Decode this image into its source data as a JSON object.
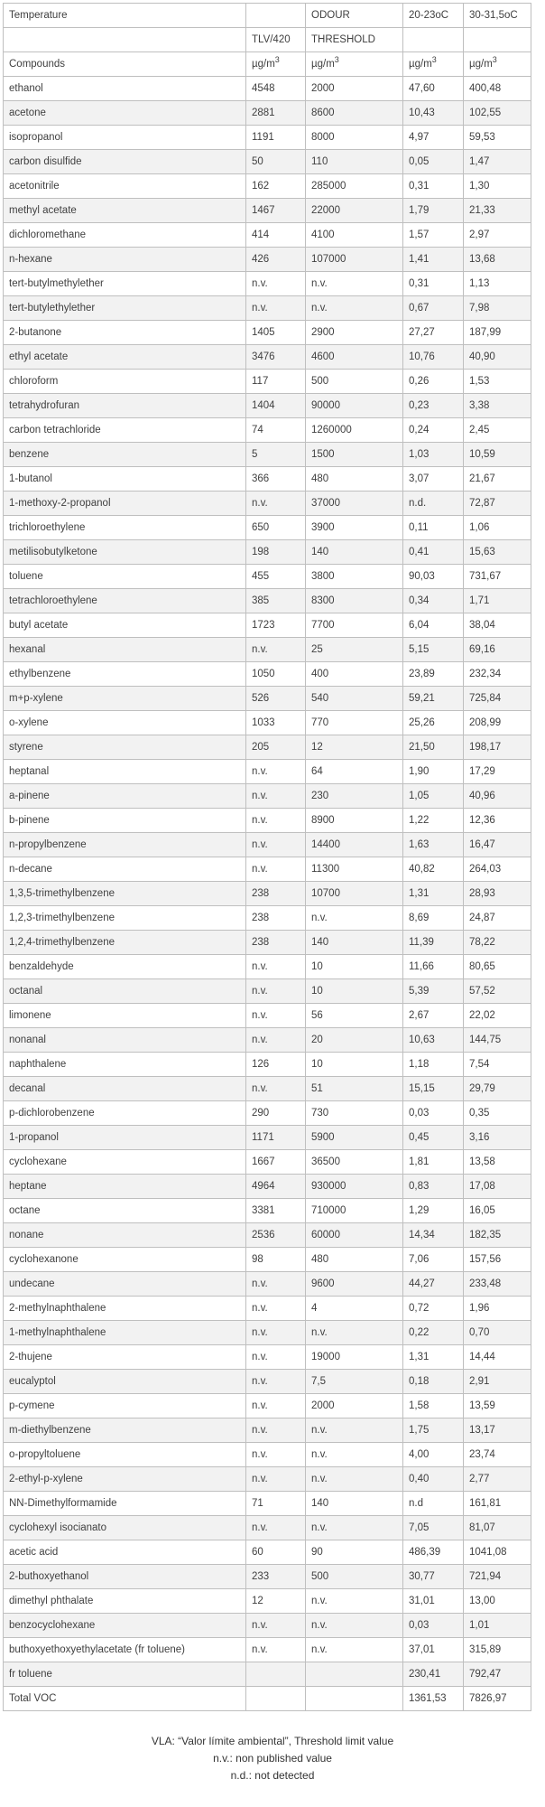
{
  "table": {
    "header": {
      "temperature": "Temperature",
      "odour": "ODOUR",
      "temp_20_23": "20-23oC",
      "temp_30_31": "30-31,5oC",
      "tlv": "TLV/420",
      "threshold": "THRESHOLD",
      "compounds": "Compounds",
      "unit_base": "µg/m",
      "unit_sup": "3"
    },
    "columns": [
      "compound-name",
      "tlv-value",
      "odour-threshold-value",
      "value-20-23c",
      "value-30-31c"
    ],
    "rows": [
      [
        "ethanol",
        "4548",
        "2000",
        "47,60",
        "400,48"
      ],
      [
        "acetone",
        "2881",
        "8600",
        "10,43",
        "102,55"
      ],
      [
        "isopropanol",
        "1191",
        "8000",
        "4,97",
        "59,53"
      ],
      [
        "carbon disulfide",
        "50",
        "110",
        "0,05",
        "1,47"
      ],
      [
        "acetonitrile",
        "162",
        "285000",
        "0,31",
        "1,30"
      ],
      [
        "methyl acetate",
        "1467",
        "22000",
        "1,79",
        "21,33"
      ],
      [
        "dichloromethane",
        "414",
        "4100",
        "1,57",
        "2,97"
      ],
      [
        "n-hexane",
        "426",
        "107000",
        "1,41",
        "13,68"
      ],
      [
        "tert-butylmethylether",
        "n.v.",
        "n.v.",
        "0,31",
        "1,13"
      ],
      [
        "tert-butylethylether",
        "n.v.",
        "n.v.",
        "0,67",
        "7,98"
      ],
      [
        "2-butanone",
        "1405",
        "2900",
        "27,27",
        "187,99"
      ],
      [
        "ethyl acetate",
        "3476",
        "4600",
        "10,76",
        "40,90"
      ],
      [
        "chloroform",
        "117",
        "500",
        "0,26",
        "1,53"
      ],
      [
        "tetrahydrofuran",
        "1404",
        "90000",
        "0,23",
        "3,38"
      ],
      [
        "carbon tetrachloride",
        "74",
        "1260000",
        "0,24",
        "2,45"
      ],
      [
        "benzene",
        "5",
        "1500",
        "1,03",
        "10,59"
      ],
      [
        "1-butanol",
        "366",
        "480",
        "3,07",
        "21,67"
      ],
      [
        "1-methoxy-2-propanol",
        "n.v.",
        "37000",
        "n.d.",
        "72,87"
      ],
      [
        "trichloroethylene",
        "650",
        "3900",
        "0,11",
        "1,06"
      ],
      [
        "metilisobutylketone",
        "198",
        "140",
        "0,41",
        "15,63"
      ],
      [
        "toluene",
        "455",
        "3800",
        "90,03",
        "731,67"
      ],
      [
        "tetrachloroethylene",
        "385",
        "8300",
        "0,34",
        "1,71"
      ],
      [
        "butyl acetate",
        "1723",
        "7700",
        "6,04",
        "38,04"
      ],
      [
        "hexanal",
        "n.v.",
        "25",
        "5,15",
        "69,16"
      ],
      [
        "ethylbenzene",
        "1050",
        "400",
        "23,89",
        "232,34"
      ],
      [
        "m+p-xylene",
        "526",
        "540",
        "59,21",
        "725,84"
      ],
      [
        "o-xylene",
        "1033",
        "770",
        "25,26",
        "208,99"
      ],
      [
        "styrene",
        "205",
        "12",
        "21,50",
        "198,17"
      ],
      [
        "heptanal",
        "n.v.",
        "64",
        "1,90",
        "17,29"
      ],
      [
        "a-pinene",
        "n.v.",
        "230",
        "1,05",
        "40,96"
      ],
      [
        "b-pinene",
        "n.v.",
        "8900",
        "1,22",
        "12,36"
      ],
      [
        "n-propylbenzene",
        "n.v.",
        "14400",
        "1,63",
        "16,47"
      ],
      [
        "n-decane",
        "n.v.",
        "11300",
        "40,82",
        "264,03"
      ],
      [
        "1,3,5-trimethylbenzene",
        "238",
        "10700",
        "1,31",
        "28,93"
      ],
      [
        "1,2,3-trimethylbenzene",
        "238",
        "n.v.",
        "8,69",
        "24,87"
      ],
      [
        "1,2,4-trimethylbenzene",
        "238",
        "140",
        "11,39",
        "78,22"
      ],
      [
        "benzaldehyde",
        "n.v.",
        "10",
        "11,66",
        "80,65"
      ],
      [
        "octanal",
        "n.v.",
        "10",
        "5,39",
        "57,52"
      ],
      [
        "limonene",
        "n.v.",
        "56",
        "2,67",
        "22,02"
      ],
      [
        "nonanal",
        "n.v.",
        "20",
        "10,63",
        "144,75"
      ],
      [
        "naphthalene",
        "126",
        "10",
        "1,18",
        "7,54"
      ],
      [
        "decanal",
        "n.v.",
        "51",
        "15,15",
        "29,79"
      ],
      [
        "p-dichlorobenzene",
        "290",
        "730",
        "0,03",
        "0,35"
      ],
      [
        "1-propanol",
        "1171",
        "5900",
        "0,45",
        "3,16"
      ],
      [
        "cyclohexane",
        "1667",
        "36500",
        "1,81",
        "13,58"
      ],
      [
        "heptane",
        "4964",
        "930000",
        "0,83",
        "17,08"
      ],
      [
        "octane",
        "3381",
        "710000",
        "1,29",
        "16,05"
      ],
      [
        "nonane",
        "2536",
        "60000",
        "14,34",
        "182,35"
      ],
      [
        "cyclohexanone",
        "98",
        "480",
        "7,06",
        "157,56"
      ],
      [
        "undecane",
        "n.v.",
        "9600",
        "44,27",
        "233,48"
      ],
      [
        "2-methylnaphthalene",
        "n.v.",
        "4",
        "0,72",
        "1,96"
      ],
      [
        "1-methylnaphthalene",
        "n.v.",
        "n.v.",
        "0,22",
        "0,70"
      ],
      [
        "2-thujene",
        "n.v.",
        "19000",
        "1,31",
        "14,44"
      ],
      [
        "eucalyptol",
        "n.v.",
        "7,5",
        "0,18",
        "2,91"
      ],
      [
        "p-cymene",
        "n.v.",
        "2000",
        "1,58",
        "13,59"
      ],
      [
        "m-diethylbenzene",
        "n.v.",
        "n.v.",
        "1,75",
        "13,17"
      ],
      [
        "o-propyltoluene",
        "n.v.",
        "n.v.",
        "4,00",
        "23,74"
      ],
      [
        "2-ethyl-p-xylene",
        "n.v.",
        "n.v.",
        "0,40",
        "2,77"
      ],
      [
        "NN-Dimethylformamide",
        "71",
        "140",
        "n.d",
        "161,81"
      ],
      [
        "cyclohexyl isocianato",
        "n.v.",
        "n.v.",
        "7,05",
        "81,07"
      ],
      [
        "acetic acid",
        "60",
        "90",
        "486,39",
        "1041,08"
      ],
      [
        "2-buthoxyethanol",
        "233",
        "500",
        "30,77",
        "721,94"
      ],
      [
        "dimethyl phthalate",
        "12",
        "n.v.",
        "31,01",
        "13,00"
      ],
      [
        "benzocyclohexane",
        "n.v.",
        "n.v.",
        "0,03",
        "1,01"
      ],
      [
        "buthoxyethoxyethylacetate (fr toluene)",
        "n.v.",
        "n.v.",
        "37,01",
        "315,89"
      ],
      [
        "fr toluene",
        "",
        "",
        "230,41",
        "792,47"
      ]
    ],
    "total": {
      "label": "Total VOC",
      "t20": "1361,53",
      "t30": "7826,97"
    }
  },
  "footnotes": [
    "VLA: “Valor límite ambiental”, Threshold limit value",
    "n.v.: non published value",
    "n.d.: not detected"
  ],
  "colors": {
    "accent_red": "#fe0000",
    "accent_yellow": "#ffff00",
    "header_gray": "#8c8c8c",
    "compounds_pink": "#f8caca",
    "stripe_gray": "#f2f2f2",
    "border_gray": "#bfbfbf"
  }
}
